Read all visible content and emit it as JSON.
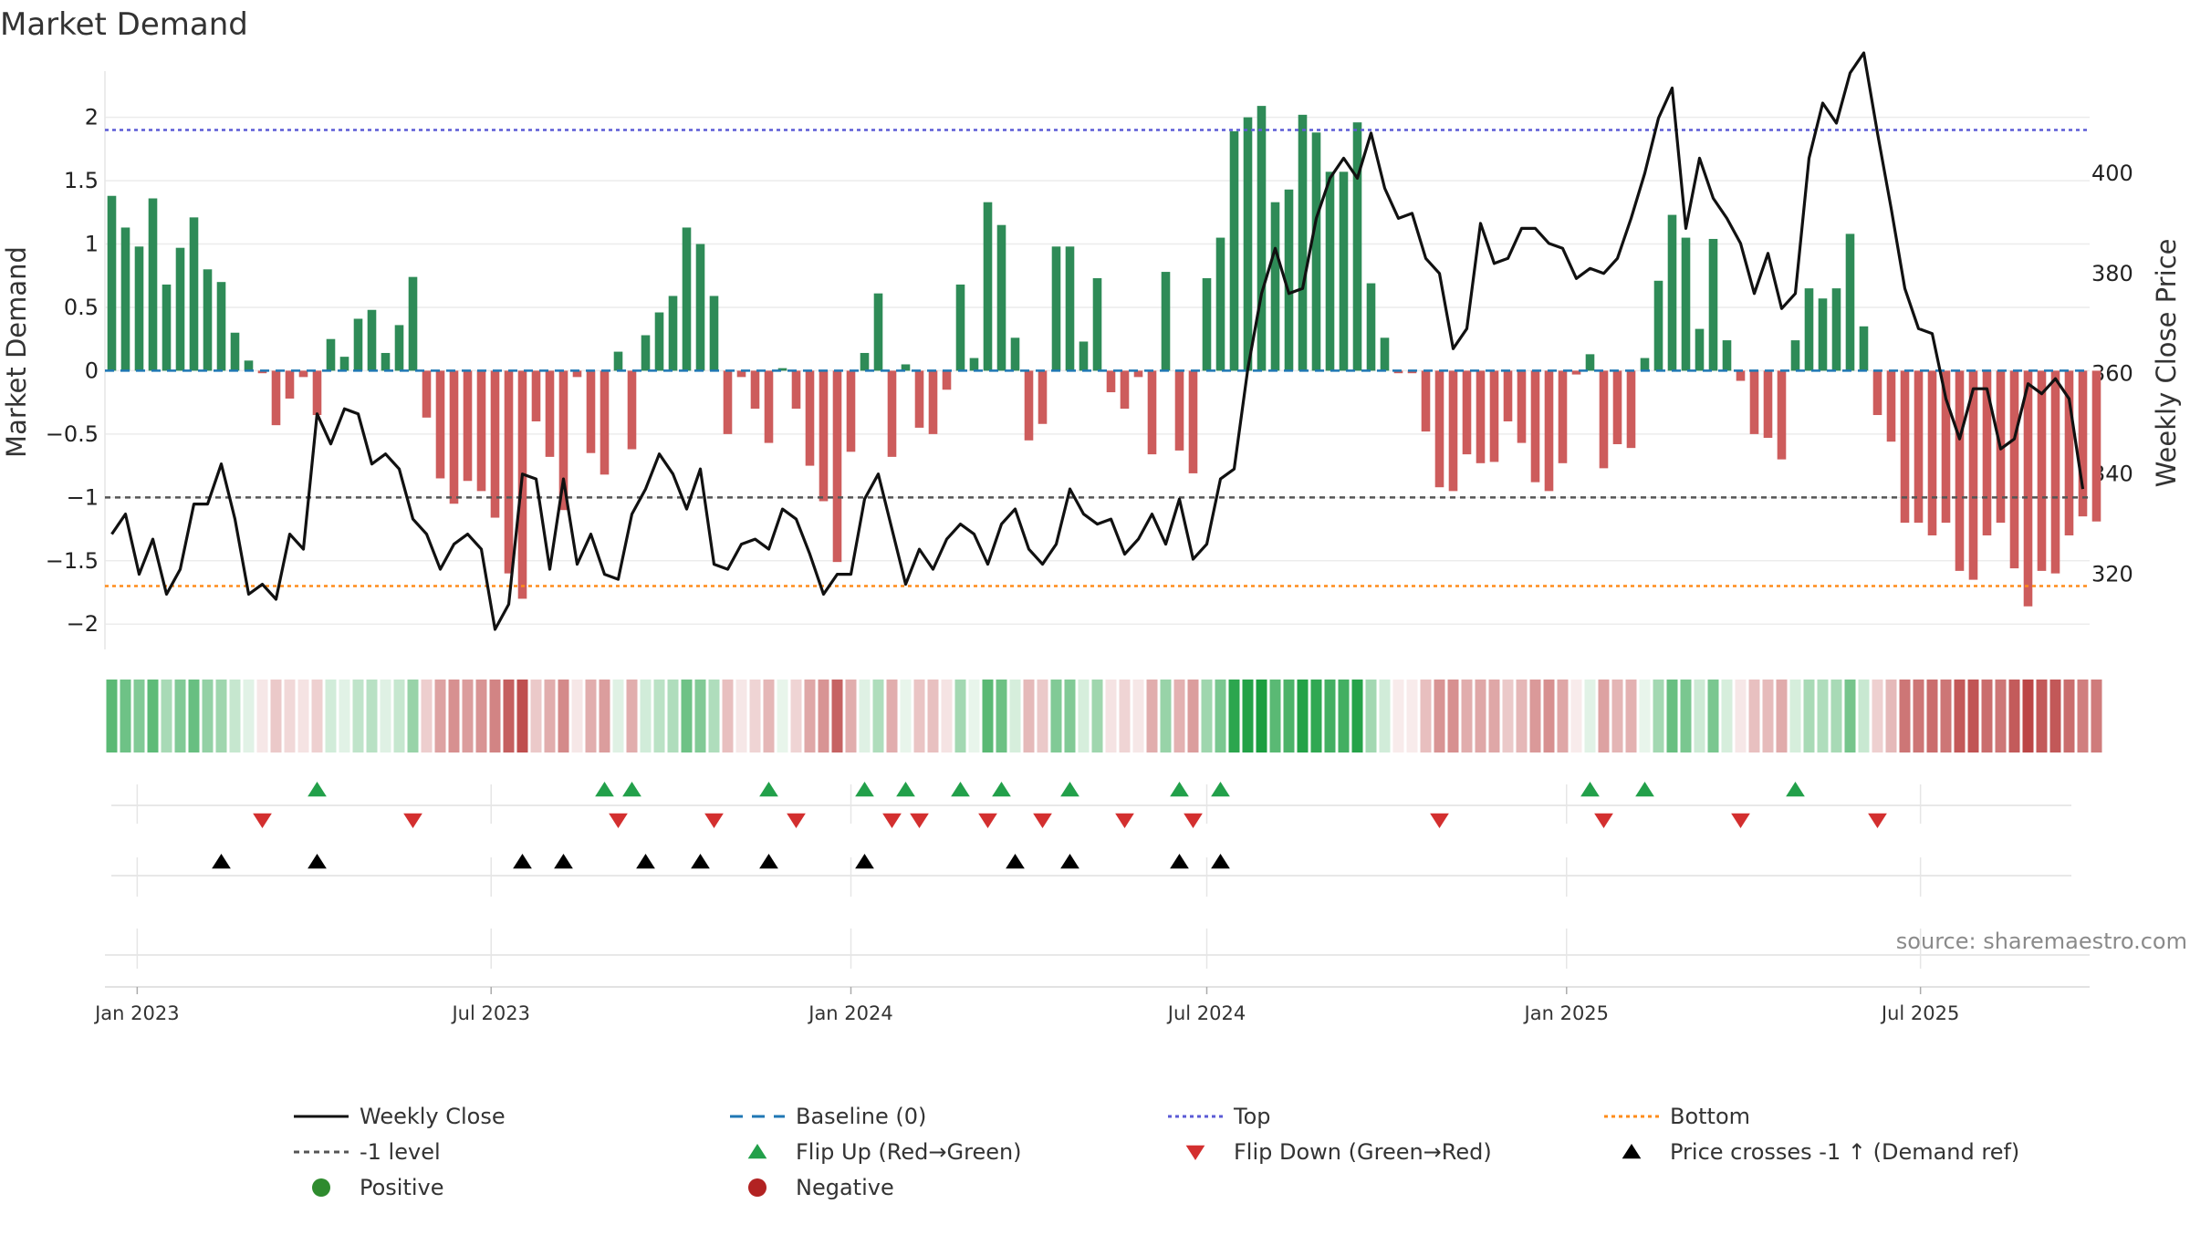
{
  "chart_data": {
    "type": "bar",
    "title": "Market Demand",
    "ylabel": "Market Demand",
    "y2label": "Weekly Close Price",
    "ylim": [
      -2.2,
      2.35
    ],
    "y2lim": [
      305,
      420
    ],
    "yticks": [
      2,
      1.5,
      1,
      0.5,
      0,
      -0.5,
      -1,
      -1.5,
      -2
    ],
    "ytick_labels": [
      "2",
      "1.5",
      "1",
      "0.5",
      "0",
      "−0.5",
      "−1",
      "−1.5",
      "−2"
    ],
    "y2ticks": [
      400,
      380,
      360,
      340,
      320
    ],
    "top_level": 1.9,
    "bottom_level": -1.7,
    "neg_level": -1,
    "start_date": "2022-12-19",
    "weeks": 145,
    "date_ticks": [
      {
        "label": "Jan 2023",
        "date": "2023-01-01"
      },
      {
        "label": "Jul 2023",
        "date": "2023-07-01"
      },
      {
        "label": "Jan 2024",
        "date": "2024-01-01"
      },
      {
        "label": "Jul 2024",
        "date": "2024-07-01"
      },
      {
        "label": "Jan 2025",
        "date": "2025-01-01"
      },
      {
        "label": "Jul 2025",
        "date": "2025-07-01"
      }
    ],
    "demand": [
      1.38,
      1.13,
      0.98,
      1.36,
      0.68,
      0.97,
      1.21,
      0.8,
      0.7,
      0.3,
      0.08,
      -0.02,
      -0.43,
      -0.22,
      -0.05,
      -0.35,
      0.25,
      0.11,
      0.41,
      0.48,
      0.14,
      0.36,
      0.74,
      -0.37,
      -0.85,
      -1.05,
      -0.87,
      -0.95,
      -1.16,
      -1.6,
      -1.8,
      -0.4,
      -0.68,
      -1.1,
      -0.05,
      -0.65,
      -0.82,
      0.15,
      -0.62,
      0.28,
      0.46,
      0.59,
      1.13,
      1.0,
      0.59,
      -0.5,
      -0.05,
      -0.3,
      -0.57,
      0.02,
      -0.3,
      -0.75,
      -1.03,
      -1.51,
      -0.64,
      0.14,
      0.61,
      -0.68,
      0.05,
      -0.45,
      -0.5,
      -0.15,
      0.68,
      0.1,
      1.33,
      1.15,
      0.26,
      -0.55,
      -0.42,
      0.98,
      0.98,
      0.23,
      0.73,
      -0.17,
      -0.3,
      -0.05,
      -0.66,
      0.78,
      -0.63,
      -0.81,
      0.73,
      1.05,
      1.89,
      2.0,
      2.09,
      1.33,
      1.43,
      2.02,
      1.88,
      1.57,
      1.57,
      1.96,
      0.69,
      0.26,
      -0.02,
      -0.02,
      -0.48,
      -0.92,
      -0.95,
      -0.66,
      -0.73,
      -0.72,
      -0.4,
      -0.57,
      -0.88,
      -0.95,
      -0.73,
      -0.03,
      0.13,
      -0.77,
      -0.58,
      -0.61,
      0.1,
      0.71,
      1.23,
      1.05,
      0.33,
      1.04,
      0.24,
      -0.08,
      -0.5,
      -0.53,
      -0.7,
      0.24,
      0.65,
      0.57,
      0.65,
      1.08,
      0.35,
      -0.35,
      -0.56,
      -1.2,
      -1.2,
      -1.3,
      -1.2,
      -1.58,
      -1.65,
      -1.3,
      -1.2,
      -1.56,
      -1.86,
      -1.58,
      -1.6,
      -1.3,
      -1.15,
      -1.19
    ],
    "price": [
      328,
      332,
      320,
      327,
      316,
      321,
      334,
      334,
      342,
      331,
      316,
      318,
      315,
      328,
      325,
      352,
      346,
      353,
      352,
      342,
      344,
      341,
      331,
      328,
      321,
      326,
      328,
      325,
      309,
      314,
      340,
      339,
      321,
      339,
      322,
      328,
      320,
      319,
      332,
      337,
      344,
      340,
      333,
      341,
      322,
      321,
      326,
      327,
      325,
      333,
      331,
      324,
      316,
      320,
      320,
      335,
      340,
      329,
      318,
      325,
      321,
      327,
      330,
      328,
      322,
      330,
      333,
      325,
      322,
      326,
      337,
      332,
      330,
      331,
      324,
      327,
      332,
      326,
      335,
      323,
      326,
      339,
      341,
      361,
      376,
      385,
      376,
      377,
      391,
      399,
      403,
      399,
      408,
      397,
      391,
      392,
      383,
      380,
      365,
      369,
      390,
      382,
      383,
      389,
      389,
      386,
      385,
      379,
      381,
      380,
      383,
      391,
      400,
      411,
      417,
      389,
      403,
      395,
      391,
      386,
      376,
      384,
      373,
      376,
      403,
      414,
      410,
      420,
      424,
      408,
      393,
      377,
      369,
      368,
      355,
      347,
      357,
      357,
      345,
      347,
      358,
      356,
      359,
      355,
      337
    ],
    "heat_alpha": [
      0.72,
      0.63,
      0.55,
      0.7,
      0.38,
      0.55,
      0.66,
      0.47,
      0.42,
      0.25,
      0.13,
      0.12,
      0.28,
      0.2,
      0.14,
      0.24,
      0.2,
      0.13,
      0.28,
      0.31,
      0.14,
      0.25,
      0.45,
      0.25,
      0.48,
      0.57,
      0.5,
      0.55,
      0.63,
      0.82,
      0.9,
      0.28,
      0.42,
      0.6,
      0.12,
      0.42,
      0.5,
      0.14,
      0.42,
      0.2,
      0.3,
      0.35,
      0.63,
      0.55,
      0.35,
      0.33,
      0.12,
      0.22,
      0.37,
      0.1,
      0.22,
      0.45,
      0.55,
      0.8,
      0.42,
      0.14,
      0.35,
      0.42,
      0.1,
      0.3,
      0.32,
      0.14,
      0.4,
      0.1,
      0.72,
      0.64,
      0.18,
      0.36,
      0.28,
      0.55,
      0.55,
      0.18,
      0.42,
      0.14,
      0.22,
      0.12,
      0.42,
      0.45,
      0.4,
      0.5,
      0.42,
      0.58,
      0.92,
      0.96,
      1.0,
      0.72,
      0.78,
      0.96,
      0.9,
      0.82,
      0.82,
      0.95,
      0.4,
      0.2,
      0.1,
      0.1,
      0.33,
      0.55,
      0.57,
      0.42,
      0.45,
      0.45,
      0.28,
      0.37,
      0.52,
      0.57,
      0.45,
      0.1,
      0.13,
      0.48,
      0.38,
      0.4,
      0.1,
      0.4,
      0.66,
      0.58,
      0.22,
      0.58,
      0.18,
      0.12,
      0.32,
      0.35,
      0.43,
      0.18,
      0.38,
      0.35,
      0.38,
      0.6,
      0.24,
      0.24,
      0.36,
      0.7,
      0.7,
      0.75,
      0.7,
      0.85,
      0.88,
      0.75,
      0.7,
      0.84,
      0.95,
      0.85,
      0.86,
      0.75,
      0.66,
      0.68
    ],
    "flip_up_weeks": [
      15,
      36,
      38,
      48,
      55,
      58,
      62,
      65,
      70,
      78,
      81,
      108,
      112,
      123
    ],
    "flip_down_weeks": [
      11,
      22,
      37,
      44,
      50,
      57,
      59,
      64,
      68,
      74,
      79,
      97,
      109,
      119,
      129
    ],
    "price_cross_weeks": [
      8,
      15,
      30,
      33,
      39,
      43,
      48,
      55,
      66,
      70,
      78,
      81
    ],
    "source": "source: sharemaestro.com",
    "colors": {
      "positive": "#2e8b57",
      "negative": "#cd5c5c",
      "price": "#111111",
      "baseline": "#1f77b4",
      "top": "#5b5bd6",
      "bottom": "#ff8c1a",
      "neg_level": "#555555",
      "heat_pos": "#1a9e3f",
      "heat_neg": "#b83c3c",
      "flip_up": "#22a04a",
      "flip_down": "#d32f2f",
      "cross": "#000000",
      "legend_pos": "#2e8b2e",
      "legend_neg": "#b22222"
    },
    "legend": [
      {
        "label": "Weekly Close",
        "marker": "line-solid"
      },
      {
        "label": "Baseline (0)",
        "marker": "line-dash-blue"
      },
      {
        "label": "Top",
        "marker": "line-dot-purple"
      },
      {
        "label": "Bottom",
        "marker": "line-dot-orange"
      },
      {
        "label": "-1 level",
        "marker": "line-dot-gray"
      },
      {
        "label": "Flip Up (Red→Green)",
        "marker": "triangle-up-green"
      },
      {
        "label": "Flip Down (Green→Red)",
        "marker": "triangle-down-red"
      },
      {
        "label": "Price crosses -1 ↑ (Demand ref)",
        "marker": "triangle-up-black"
      },
      {
        "label": "Positive",
        "marker": "circle-green"
      },
      {
        "label": "Negative",
        "marker": "circle-red"
      }
    ]
  }
}
